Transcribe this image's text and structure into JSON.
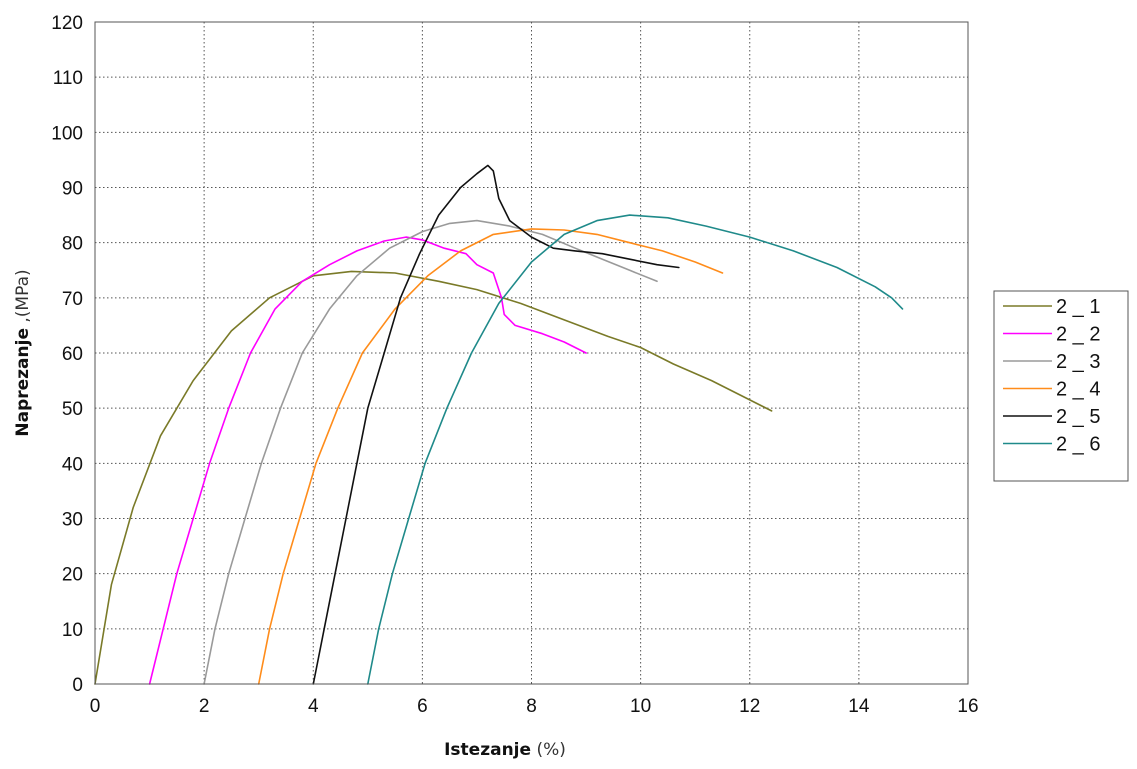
{
  "chart_data": {
    "type": "line",
    "xlabel": "Istezanje",
    "xlabel_unit": "(%)",
    "ylabel": "Naprezanje",
    "ylabel_unit": ",(MPa)",
    "xlim": [
      0,
      16
    ],
    "ylim": [
      0,
      120
    ],
    "x_ticks": [
      "0",
      "2",
      "4",
      "6",
      "8",
      "10",
      "12",
      "14",
      "16"
    ],
    "y_ticks": [
      "0",
      "10",
      "20",
      "30",
      "40",
      "50",
      "60",
      "70",
      "80",
      "90",
      "100",
      "110",
      "120"
    ],
    "grid": true,
    "legend_position": "right",
    "series": [
      {
        "name": "2 _ 1",
        "color": "#7a7a28",
        "points": [
          [
            0,
            0
          ],
          [
            0.3,
            18
          ],
          [
            0.7,
            32
          ],
          [
            1.2,
            45
          ],
          [
            1.8,
            55
          ],
          [
            2.5,
            64
          ],
          [
            3.2,
            70
          ],
          [
            4.0,
            74
          ],
          [
            4.7,
            74.8
          ],
          [
            5.5,
            74.5
          ],
          [
            6.3,
            73
          ],
          [
            7.0,
            71.5
          ],
          [
            7.8,
            69
          ],
          [
            8.6,
            66
          ],
          [
            9.4,
            63
          ],
          [
            10.0,
            61
          ],
          [
            10.6,
            58
          ],
          [
            11.3,
            55
          ],
          [
            11.9,
            52
          ],
          [
            12.4,
            49.5
          ]
        ]
      },
      {
        "name": "2 _ 2",
        "color": "#ff00ff",
        "points": [
          [
            1.0,
            0
          ],
          [
            1.25,
            10
          ],
          [
            1.5,
            20
          ],
          [
            1.8,
            30
          ],
          [
            2.1,
            40
          ],
          [
            2.45,
            50
          ],
          [
            2.85,
            60
          ],
          [
            3.3,
            68
          ],
          [
            3.8,
            73
          ],
          [
            4.3,
            76
          ],
          [
            4.8,
            78.5
          ],
          [
            5.3,
            80.3
          ],
          [
            5.7,
            81
          ],
          [
            6.0,
            80.5
          ],
          [
            6.4,
            79
          ],
          [
            6.8,
            78
          ],
          [
            7.0,
            76
          ],
          [
            7.3,
            74.5
          ],
          [
            7.45,
            70
          ],
          [
            7.5,
            67
          ],
          [
            7.7,
            65
          ],
          [
            8.2,
            63.5
          ],
          [
            8.6,
            62
          ],
          [
            9.0,
            60
          ]
        ]
      },
      {
        "name": "2 _ 3",
        "color": "#9a9a9a",
        "points": [
          [
            2.0,
            0
          ],
          [
            2.2,
            10
          ],
          [
            2.45,
            20
          ],
          [
            2.75,
            30
          ],
          [
            3.05,
            40
          ],
          [
            3.4,
            50
          ],
          [
            3.8,
            60
          ],
          [
            4.3,
            68
          ],
          [
            4.8,
            74
          ],
          [
            5.4,
            79
          ],
          [
            6.0,
            82
          ],
          [
            6.5,
            83.5
          ],
          [
            7.0,
            84
          ],
          [
            7.6,
            83
          ],
          [
            8.2,
            81.5
          ],
          [
            8.8,
            79
          ],
          [
            9.3,
            77
          ],
          [
            9.8,
            75
          ],
          [
            10.3,
            73
          ]
        ]
      },
      {
        "name": "2 _ 4",
        "color": "#ff8c1a",
        "points": [
          [
            3.0,
            0
          ],
          [
            3.2,
            10
          ],
          [
            3.45,
            20
          ],
          [
            3.75,
            30
          ],
          [
            4.05,
            40
          ],
          [
            4.45,
            50
          ],
          [
            4.9,
            60
          ],
          [
            5.5,
            68
          ],
          [
            6.1,
            74
          ],
          [
            6.7,
            78.5
          ],
          [
            7.3,
            81.5
          ],
          [
            8.0,
            82.5
          ],
          [
            8.6,
            82.3
          ],
          [
            9.2,
            81.5
          ],
          [
            9.8,
            80
          ],
          [
            10.4,
            78.5
          ],
          [
            11.0,
            76.5
          ],
          [
            11.5,
            74.5
          ]
        ]
      },
      {
        "name": "2 _ 5",
        "color": "#111111",
        "points": [
          [
            4.0,
            0
          ],
          [
            4.2,
            10
          ],
          [
            4.4,
            20
          ],
          [
            4.6,
            30
          ],
          [
            4.8,
            40
          ],
          [
            5.0,
            50
          ],
          [
            5.3,
            60
          ],
          [
            5.6,
            70
          ],
          [
            5.95,
            78
          ],
          [
            6.3,
            85
          ],
          [
            6.7,
            90
          ],
          [
            7.0,
            92.5
          ],
          [
            7.2,
            94
          ],
          [
            7.3,
            93
          ],
          [
            7.4,
            88
          ],
          [
            7.6,
            84
          ],
          [
            8.0,
            81
          ],
          [
            8.4,
            79
          ],
          [
            8.8,
            78.5
          ],
          [
            9.3,
            78
          ],
          [
            9.8,
            77
          ],
          [
            10.3,
            76
          ],
          [
            10.7,
            75.5
          ]
        ]
      },
      {
        "name": "2 _ 6",
        "color": "#1f8a8a",
        "points": [
          [
            5.0,
            0
          ],
          [
            5.2,
            10
          ],
          [
            5.45,
            20
          ],
          [
            5.75,
            30
          ],
          [
            6.05,
            40
          ],
          [
            6.45,
            50
          ],
          [
            6.9,
            60
          ],
          [
            7.4,
            69
          ],
          [
            8.0,
            76.5
          ],
          [
            8.6,
            81.5
          ],
          [
            9.2,
            84
          ],
          [
            9.8,
            85
          ],
          [
            10.5,
            84.5
          ],
          [
            11.2,
            83
          ],
          [
            12.0,
            81
          ],
          [
            12.8,
            78.5
          ],
          [
            13.6,
            75.5
          ],
          [
            14.3,
            72
          ],
          [
            14.6,
            70
          ],
          [
            14.8,
            68
          ]
        ]
      }
    ]
  }
}
